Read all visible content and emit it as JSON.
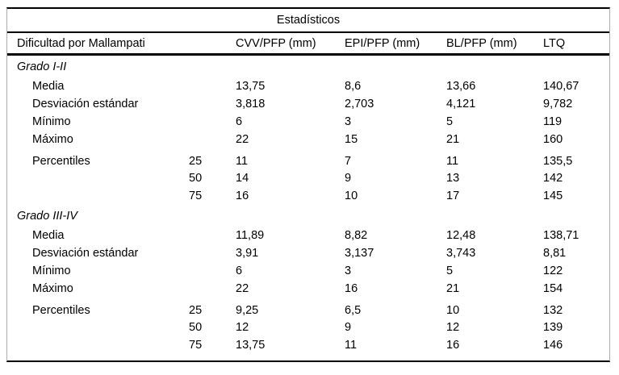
{
  "table": {
    "title": "Estadísticos",
    "columns": [
      "Dificultad por Mallampati",
      "CVV/PFP (mm)",
      "EPI/PFP (mm)",
      "BL/PFP (mm)",
      "LTQ"
    ],
    "colors": {
      "rule": "#000000",
      "side_border": "#adadad",
      "text": "#000000",
      "background": "#ffffff"
    },
    "sections": [
      {
        "label": "Grado I-II",
        "rows": [
          {
            "label": "Media",
            "pct": "",
            "values": [
              "13,75",
              "8,6",
              "13,66",
              "140,67"
            ]
          },
          {
            "label": "Desviación estándar",
            "pct": "",
            "values": [
              "3,818",
              "2,703",
              "4,121",
              "9,782"
            ]
          },
          {
            "label": "Mínimo",
            "pct": "",
            "values": [
              "6",
              "3",
              "5",
              "119"
            ]
          },
          {
            "label": "Máximo",
            "pct": "",
            "values": [
              "22",
              "15",
              "21",
              "160"
            ]
          },
          {
            "label": "Percentiles",
            "pct": "25",
            "values": [
              "11",
              "7",
              "11",
              "135,5"
            ]
          },
          {
            "label": "",
            "pct": "50",
            "values": [
              "14",
              "9",
              "13",
              "142"
            ]
          },
          {
            "label": "",
            "pct": "75",
            "values": [
              "16",
              "10",
              "17",
              "145"
            ]
          }
        ]
      },
      {
        "label": "Grado III-IV",
        "rows": [
          {
            "label": "Media",
            "pct": "",
            "values": [
              "11,89",
              "8,82",
              "12,48",
              "138,71"
            ]
          },
          {
            "label": "Desviación estándar",
            "pct": "",
            "values": [
              "3,91",
              "3,137",
              "3,743",
              "8,81"
            ]
          },
          {
            "label": "Mínimo",
            "pct": "",
            "values": [
              "6",
              "3",
              "5",
              "122"
            ]
          },
          {
            "label": "Máximo",
            "pct": "",
            "values": [
              "22",
              "16",
              "21",
              "154"
            ]
          },
          {
            "label": "Percentiles",
            "pct": "25",
            "values": [
              "9,25",
              "6,5",
              "10",
              "132"
            ]
          },
          {
            "label": "",
            "pct": "50",
            "values": [
              "12",
              "9",
              "12",
              "139"
            ]
          },
          {
            "label": "",
            "pct": "75",
            "values": [
              "13,75",
              "11",
              "16",
              "146"
            ]
          }
        ]
      }
    ]
  }
}
